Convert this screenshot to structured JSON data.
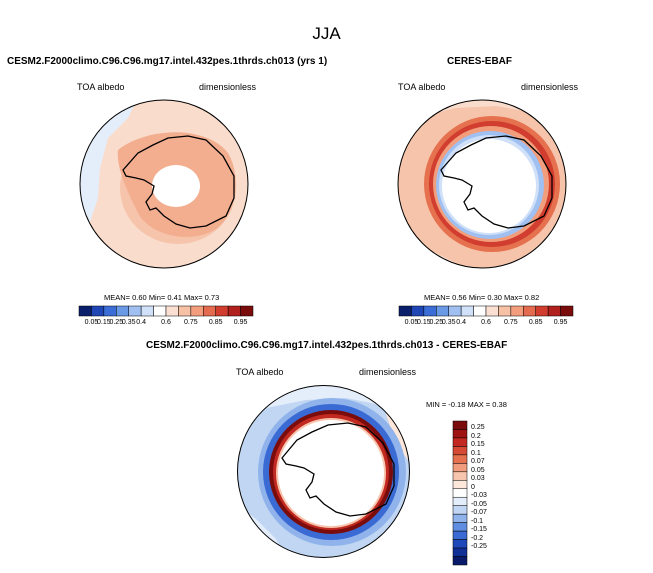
{
  "title": "JJA",
  "panels": {
    "model": {
      "title": "CESM2.F2000climo.C96.C96.mg17.intel.432pes.1thrds.ch013 (yrs 1)",
      "variable": "TOA albedo",
      "units": "dimensionless",
      "stats": "MEAN=  0.60  Min=  0.41  Max=  0.73"
    },
    "obs": {
      "title": "CERES-EBAF",
      "variable": "TOA albedo",
      "units": "dimensionless",
      "stats": "MEAN=  0.56  Min=  0.30  Max=  0.82"
    },
    "diff": {
      "title": "CESM2.F2000climo.C96.C96.mg17.intel.432pes.1thrds.ch013 - CERES-EBAF",
      "variable": "TOA albedo",
      "units": "dimensionless",
      "stats": "MIN =  -0.18  MAX =  0.38"
    }
  },
  "colorbar_abs": {
    "colors": [
      "#0a1f6b",
      "#1f46b5",
      "#3a6ed6",
      "#6a99e6",
      "#9fc0f0",
      "#cfe0f8",
      "#ffffff",
      "#fbe0d2",
      "#f7c1a6",
      "#f29d7c",
      "#e56b4f",
      "#d13d2e",
      "#b0201c",
      "#7a0c0c"
    ],
    "ticks": [
      "0.05",
      "0.15",
      "0.25",
      "0.35",
      "0.4",
      "0.6",
      "0.75",
      "0.85",
      "0.95"
    ]
  },
  "colorbar_diff": {
    "colors": [
      "#7a0c0c",
      "#a01313",
      "#c22a21",
      "#d64a35",
      "#e5714f",
      "#f09c7d",
      "#f7c5ad",
      "#fde6da",
      "#ffffff",
      "#e4eefb",
      "#c0d6f3",
      "#8fb3ea",
      "#5f8de0",
      "#3a6ad3",
      "#1f48bb",
      "#102f97",
      "#0a1a6a"
    ],
    "ticks": [
      "0.25",
      "0.2",
      "0.15",
      "0.1",
      "0.07",
      "0.05",
      "0.03",
      "0",
      "-0.03",
      "-0.05",
      "-0.07",
      "-0.1",
      "-0.15",
      "-0.2",
      "-0.25"
    ]
  }
}
